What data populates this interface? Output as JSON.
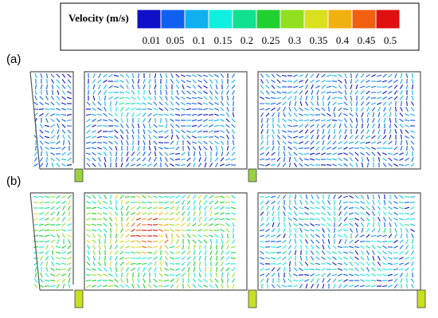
{
  "colorbar": {
    "title": "Velocity (m/s)",
    "colors": [
      "#1010c8",
      "#1060f0",
      "#10b0f0",
      "#10f0e0",
      "#10e090",
      "#20d030",
      "#90e020",
      "#d8e020",
      "#f0b010",
      "#f06010",
      "#e01010"
    ],
    "ticks": [
      "0.01",
      "0.05",
      "0.1",
      "0.15",
      "0.2",
      "0.25",
      "0.3",
      "0.35",
      "0.4",
      "0.45",
      "0.5"
    ]
  },
  "panels": [
    {
      "label": "(a)"
    },
    {
      "label": "(b)"
    }
  ]
}
